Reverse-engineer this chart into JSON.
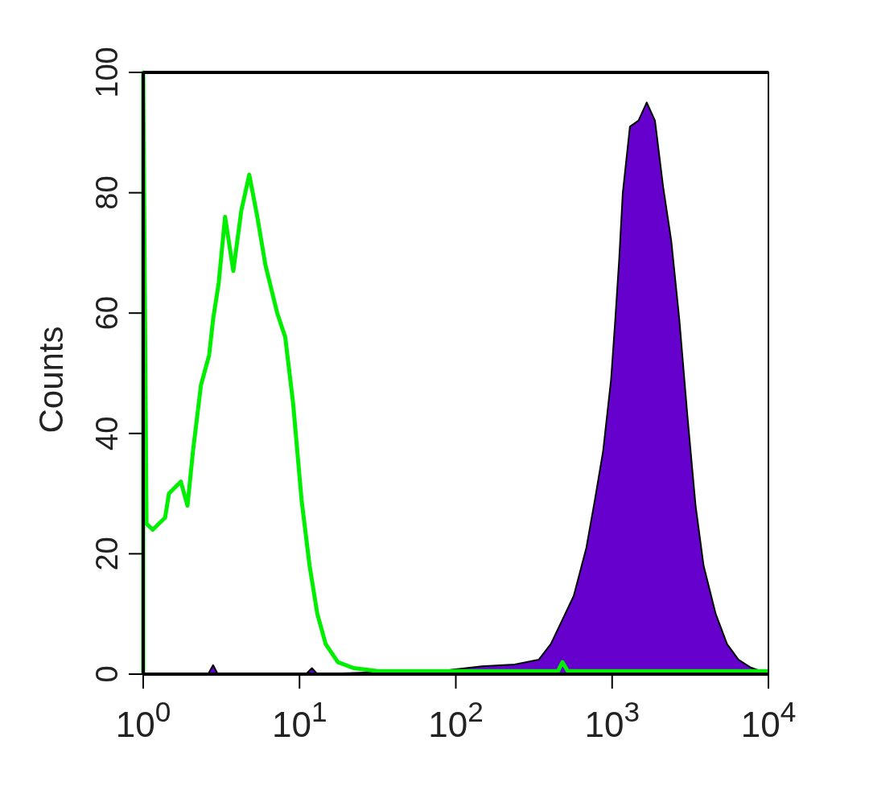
{
  "chart_data": {
    "type": "line",
    "ylabel": "Counts",
    "log": "x",
    "xlim": [
      1,
      10000
    ],
    "ylim": [
      0,
      100
    ],
    "xticks": [
      {
        "value": 1,
        "label": "10$^{0}$"
      },
      {
        "value": 10,
        "label": "10$^{1}$"
      },
      {
        "value": 100,
        "label": "10$^{2}$"
      },
      {
        "value": 1000,
        "label": "10$^{3}$"
      },
      {
        "value": 10000,
        "label": "10$^{4}$"
      }
    ],
    "yticks": [
      0,
      20,
      40,
      60,
      80,
      100
    ],
    "grid": false,
    "series": [
      {
        "type": "area",
        "color": "#6600cc",
        "x": [
          1,
          2.6,
          2.8,
          3,
          11,
          12,
          13,
          92,
          147,
          238,
          339,
          405,
          480,
          568,
          684,
          776,
          875,
          985,
          1048,
          1110,
          1170,
          1300,
          1475,
          1665,
          1880,
          2120,
          2390,
          2690,
          3030,
          3420,
          3850,
          4600,
          5440,
          6440,
          7710,
          9140,
          10000
        ],
        "values": [
          0,
          0,
          1.5,
          0,
          0,
          1,
          0,
          0.7,
          1.3,
          1.6,
          2.4,
          5,
          9,
          13,
          21,
          29,
          37,
          49,
          59,
          69,
          80,
          91,
          92,
          95,
          92,
          81,
          72,
          59,
          43,
          28,
          18,
          10,
          5,
          2.4,
          1.1,
          0.4,
          0
        ]
      },
      {
        "color": "#00ee00",
        "x": [
          1,
          1,
          1.05,
          1.15,
          1.38,
          1.46,
          1.74,
          1.92,
          2.08,
          2.34,
          2.64,
          2.8,
          3.04,
          3.34,
          3.77,
          4.24,
          4.77,
          5.37,
          6.05,
          7.2,
          8.1,
          9.1,
          10.3,
          11.6,
          13,
          14.7,
          17.6,
          22.2,
          31.8,
          148,
          450,
          481,
          520,
          610,
          10000
        ],
        "values": [
          0,
          100,
          25,
          24,
          26,
          30,
          32,
          28,
          37,
          48,
          53,
          59,
          65,
          76,
          67,
          77,
          83,
          76,
          68,
          60,
          56,
          45,
          29,
          18,
          10,
          5,
          2,
          1,
          0.5,
          0.5,
          0.5,
          2,
          0.5,
          0.5,
          0.5
        ]
      }
    ]
  }
}
